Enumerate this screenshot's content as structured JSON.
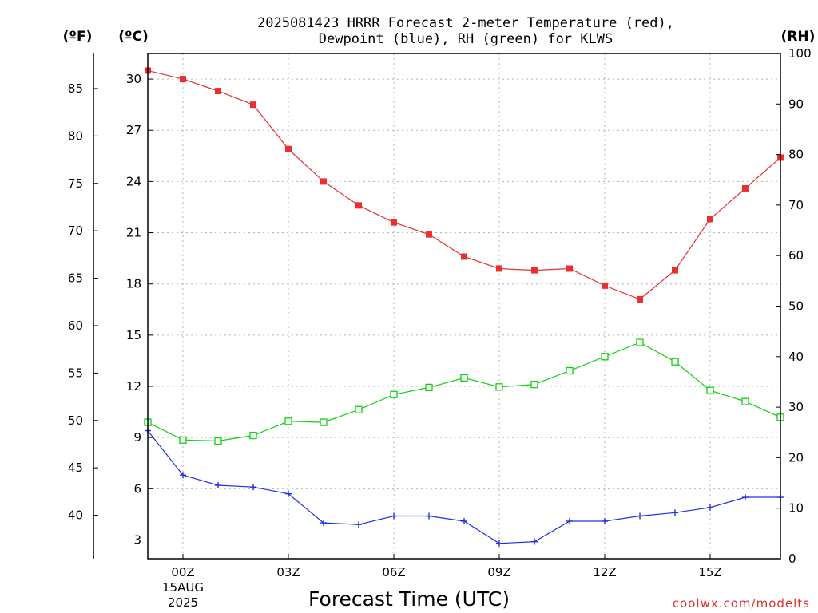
{
  "chart_data": {
    "type": "line",
    "title_lines": [
      "2025081423 HRRR Forecast 2-meter Temperature (red),",
      "Dewpoint (blue), RH (green) for KLWS"
    ],
    "xlabel": "Forecast Time (UTC)",
    "credit": "coolwx.com/modelts",
    "units": {
      "fahrenheit": "(ºF)",
      "celsius": "(ºC)",
      "rh": "(RH)"
    },
    "x_range": [
      -1,
      17
    ],
    "x_ticks": [
      {
        "x": 0,
        "label": "00Z",
        "sub": [
          "15AUG",
          "2025"
        ]
      },
      {
        "x": 3,
        "label": "03Z",
        "sub": []
      },
      {
        "x": 6,
        "label": "06Z",
        "sub": []
      },
      {
        "x": 9,
        "label": "09Z",
        "sub": []
      },
      {
        "x": 12,
        "label": "12Z",
        "sub": []
      },
      {
        "x": 15,
        "label": "15Z",
        "sub": []
      }
    ],
    "celsius_axis": {
      "range": [
        1.9,
        31.5
      ],
      "ticks": [
        3,
        6,
        9,
        12,
        15,
        18,
        21,
        24,
        27,
        30
      ]
    },
    "fahrenheit_axis": {
      "ticks": [
        40,
        45,
        50,
        55,
        60,
        65,
        70,
        75,
        80,
        85
      ]
    },
    "rh_axis": {
      "range": [
        0,
        100
      ],
      "ticks": [
        0,
        10,
        20,
        30,
        40,
        50,
        60,
        70,
        80,
        90,
        100
      ]
    },
    "grid": true,
    "x": [
      -1,
      0,
      1,
      2,
      3,
      4,
      5,
      6,
      7,
      8,
      9,
      10,
      11,
      12,
      13,
      14,
      15,
      16,
      17
    ],
    "series": [
      {
        "name": "Temperature",
        "axis": "celsius",
        "color": "#e83030",
        "marker": "filled-square",
        "values": [
          30.5,
          30.0,
          29.3,
          28.5,
          25.9,
          24.0,
          22.6,
          21.6,
          20.9,
          19.6,
          18.9,
          18.8,
          18.9,
          17.9,
          17.1,
          18.8,
          21.8,
          23.6,
          25.4
        ]
      },
      {
        "name": "Dewpoint",
        "axis": "celsius",
        "color": "#2030e0",
        "marker": "plus",
        "values": [
          9.4,
          6.8,
          6.2,
          6.1,
          5.7,
          4.0,
          3.9,
          4.4,
          4.4,
          4.1,
          2.8,
          2.9,
          4.1,
          4.1,
          4.4,
          4.6,
          4.9,
          5.5,
          5.5
        ]
      },
      {
        "name": "RH",
        "axis": "rh",
        "color": "#10d010",
        "marker": "open-square",
        "values": [
          27.0,
          23.5,
          23.3,
          24.4,
          27.2,
          27.0,
          29.5,
          32.5,
          33.9,
          35.8,
          34.0,
          34.5,
          37.2,
          40.0,
          42.8,
          39.0,
          33.3,
          31.1,
          28.0
        ]
      }
    ]
  }
}
